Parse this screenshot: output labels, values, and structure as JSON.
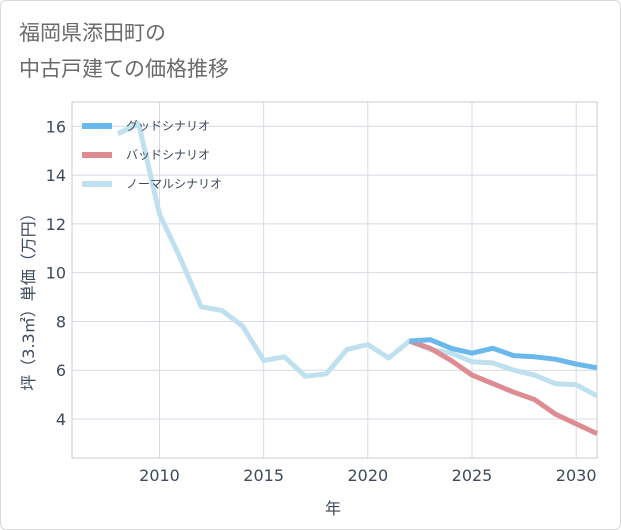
{
  "title_lines": [
    "福岡県添田町の",
    "中古戸建ての価格推移"
  ],
  "chart_data": {
    "type": "line",
    "xlabel": "年",
    "ylabel": "坪（3.3㎡）単価（万円）",
    "xlim": [
      2005.8,
      2031
    ],
    "ylim": [
      2.4,
      17.0
    ],
    "x_ticks": [
      2010,
      2015,
      2020,
      2025,
      2030
    ],
    "y_ticks": [
      4,
      6,
      8,
      10,
      12,
      14,
      16
    ],
    "grid": true,
    "legend_position": "top-left",
    "series": [
      {
        "name": "グッドシナリオ",
        "color": "#6bb8ec",
        "x": [
          2022,
          2023,
          2024,
          2025,
          2026,
          2027,
          2028,
          2029,
          2030,
          2031
        ],
        "y": [
          7.2,
          7.25,
          6.9,
          6.7,
          6.9,
          6.6,
          6.55,
          6.45,
          6.25,
          6.1
        ]
      },
      {
        "name": "バッドシナリオ",
        "color": "#de8b91",
        "x": [
          2022,
          2023,
          2024,
          2025,
          2026,
          2027,
          2028,
          2029,
          2030,
          2031
        ],
        "y": [
          7.2,
          6.9,
          6.4,
          5.8,
          5.45,
          5.1,
          4.8,
          4.2,
          3.8,
          3.4
        ]
      },
      {
        "name": "ノーマルシナリオ",
        "color": "#bfe0ee",
        "x": [
          2008,
          2009,
          2010,
          2011,
          2012,
          2013,
          2014,
          2015,
          2016,
          2017,
          2018,
          2019,
          2020,
          2021,
          2022,
          2023,
          2024,
          2025,
          2026,
          2027,
          2028,
          2029,
          2030,
          2031
        ],
        "y": [
          15.7,
          16.1,
          12.4,
          10.6,
          8.6,
          8.45,
          7.8,
          6.4,
          6.55,
          5.75,
          5.85,
          6.85,
          7.05,
          6.5,
          7.2,
          6.85,
          6.7,
          6.35,
          6.3,
          6.0,
          5.8,
          5.45,
          5.4,
          4.95
        ]
      }
    ]
  }
}
